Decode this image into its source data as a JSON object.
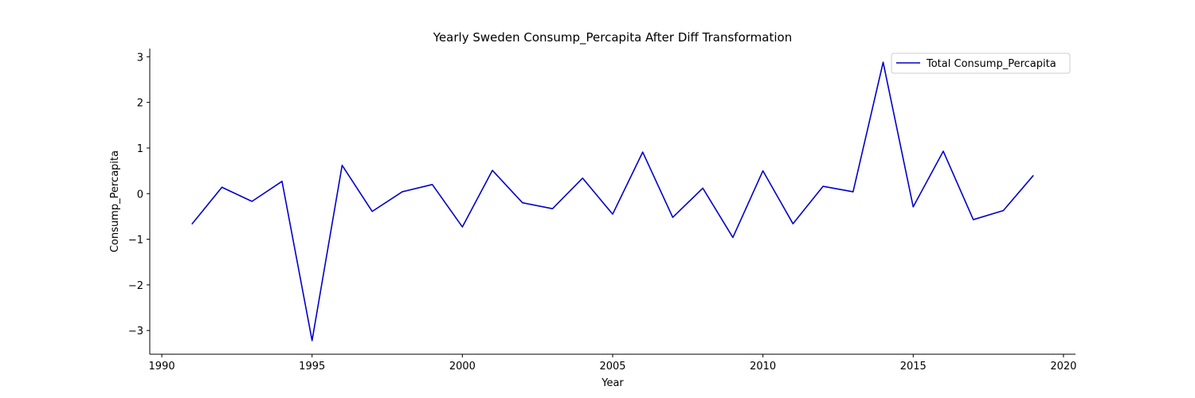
{
  "chart_data": {
    "type": "line",
    "title": "Yearly Sweden Consump_Percapita After Diff Transformation",
    "xlabel": "Year",
    "ylabel": "Consump_Percapita",
    "xlim": [
      1989.6,
      2020.4
    ],
    "ylim": [
      -3.52,
      3.18
    ],
    "x_ticks": [
      1990,
      1995,
      2000,
      2005,
      2010,
      2015,
      2020
    ],
    "y_ticks": [
      -3,
      -2,
      -1,
      0,
      1,
      2,
      3
    ],
    "grid": false,
    "legend_position": "top-right",
    "series": [
      {
        "name": "Total Consump_Percapita",
        "color": "#0000cc",
        "x": [
          1991,
          1992,
          1993,
          1994,
          1995,
          1996,
          1997,
          1998,
          1999,
          2000,
          2001,
          2002,
          2003,
          2004,
          2005,
          2006,
          2007,
          2008,
          2009,
          2010,
          2011,
          2012,
          2013,
          2014,
          2015,
          2016,
          2017,
          2018,
          2019
        ],
        "values": [
          -0.67,
          0.14,
          -0.17,
          0.27,
          -3.22,
          0.62,
          -0.39,
          0.04,
          0.2,
          -0.73,
          0.51,
          -0.2,
          -0.33,
          0.34,
          -0.45,
          0.91,
          -0.52,
          0.12,
          -0.96,
          0.5,
          -0.66,
          0.16,
          0.04,
          2.88,
          -0.29,
          0.93,
          -0.57,
          -0.37,
          0.4
        ]
      }
    ]
  }
}
